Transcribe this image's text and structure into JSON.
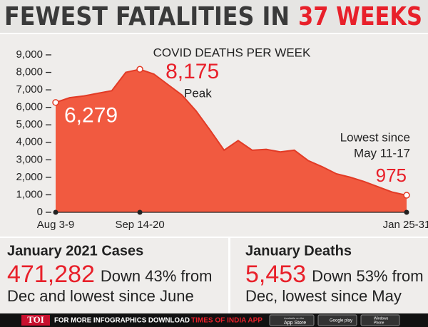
{
  "header": {
    "title": "FEWEST FATALITIES IN",
    "title_highlight": "37 WEEKS"
  },
  "chart_data": {
    "type": "area",
    "title": "COVID DEATHS PER WEEK",
    "categories": [
      "Aug 3-9",
      null,
      null,
      null,
      null,
      null,
      "Sep 14-20",
      null,
      null,
      null,
      null,
      null,
      null,
      null,
      null,
      null,
      null,
      null,
      null,
      null,
      null,
      null,
      null,
      null,
      null,
      "Jan 25-31"
    ],
    "values": [
      6279,
      6550,
      6650,
      6800,
      6950,
      8000,
      8175,
      7900,
      7300,
      6700,
      5800,
      4700,
      3550,
      4100,
      3550,
      3600,
      3450,
      3550,
      2950,
      2600,
      2200,
      2000,
      1750,
      1450,
      1150,
      975
    ],
    "value_labels": [
      "6,279",
      null,
      null,
      null,
      null,
      null,
      "8,175",
      null,
      null,
      null,
      null,
      null,
      null,
      null,
      null,
      null,
      null,
      null,
      null,
      null,
      null,
      null,
      null,
      null,
      null,
      "975"
    ],
    "annotations": [
      "Peak",
      "Lowest since",
      "May 11-17"
    ],
    "color": "#f15a40",
    "line_color": "#e23b26",
    "ylim": [
      0,
      9000
    ],
    "yticks": [
      0,
      {
        "value": 1000,
        "label": "1,000"
      },
      {
        "value": 2000,
        "label": "2,000"
      },
      {
        "value": 3000,
        "label": "3,000"
      },
      {
        "value": 4000,
        "label": "4,000"
      },
      {
        "value": 5000,
        "label": "5,000"
      },
      {
        "value": 6000,
        "label": "6,000"
      },
      {
        "value": 7000,
        "label": "7,000"
      },
      {
        "value": 8000,
        "label": "8,000"
      },
      {
        "value": 9000,
        "label": "9,000"
      }
    ]
  },
  "panels": [
    {
      "title": "January 2021 Cases",
      "figure": "471,282",
      "lines": [
        "Down 43% from",
        "Dec and lowest since June"
      ]
    },
    {
      "title": "January Deaths",
      "figure": "5,453",
      "lines": [
        "Down 53% from",
        "Dec, lowest since May"
      ]
    }
  ],
  "footer": {
    "brand": "TOI",
    "text": "FOR MORE INFOGRAPHICS DOWNLOAD",
    "app": "TIMES OF INDIA APP",
    "badges": [
      "Available on the",
      "App Store",
      "Google play",
      "Windows",
      "Phone"
    ]
  }
}
